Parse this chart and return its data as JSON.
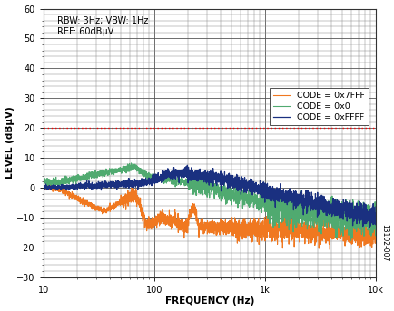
{
  "title": "",
  "xlabel": "FREQUENCY (Hz)",
  "ylabel": "LEVEL (dBμV)",
  "xlim": [
    10,
    10000
  ],
  "ylim": [
    -30,
    60
  ],
  "yticks": [
    -30,
    -20,
    -10,
    0,
    10,
    20,
    30,
    40,
    50,
    60
  ],
  "annotation_line1": "RBW: 3Hz; VBW: 1Hz",
  "annotation_line2": "REF: 60dBμV",
  "red_line_y": 20.0,
  "legend": [
    "CODE = 0xFFFF",
    "CODE = 0x7FFF",
    "CODE = 0x0"
  ],
  "colors": {
    "FFFF": "#1a3080",
    "7FFF": "#f07820",
    "0x0": "#50aa70"
  },
  "figure_label": "13102-007",
  "background_color": "#ffffff"
}
